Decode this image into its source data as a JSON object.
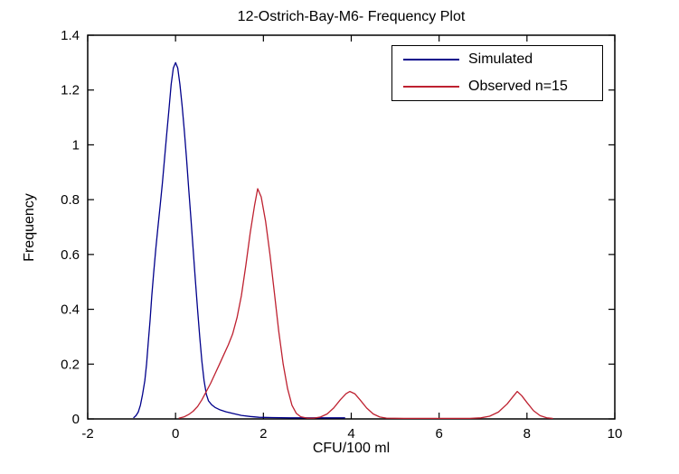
{
  "figure": {
    "background": "#ffffff",
    "axis_color": "#000000"
  },
  "chart_data": {
    "type": "line",
    "title": "12-Ostrich-Bay-M6- Frequency Plot",
    "xlabel": "CFU/100 ml",
    "ylabel": "Frequency",
    "xlim": [
      -2,
      10
    ],
    "ylim": [
      0,
      1.4
    ],
    "x_ticks": [
      -2,
      0,
      2,
      4,
      6,
      8,
      10
    ],
    "x_tick_labels": [
      "-2",
      "0",
      "2",
      "4",
      "6",
      "8",
      "10"
    ],
    "y_ticks": [
      0,
      0.2,
      0.4,
      0.6,
      0.8,
      1,
      1.2,
      1.4
    ],
    "y_tick_labels": [
      "0",
      "0.2",
      "0.4",
      "0.6",
      "0.8",
      "1",
      "1.2",
      "1.4"
    ],
    "grid": false,
    "box": true,
    "tick_direction": "in",
    "legend": {
      "position": "top-right",
      "entries": [
        {
          "label": "Simulated",
          "color": "#00008B"
        },
        {
          "label": "Observed n=15",
          "color": "#BE2130"
        }
      ]
    },
    "key_points": {
      "simulated_peak": {
        "x": 0.0,
        "y": 1.3
      },
      "observed_main_peak": {
        "x": 1.9,
        "y": 0.84
      },
      "observed_minor_peaks": [
        {
          "x": 4.0,
          "y": 0.1
        },
        {
          "x": 7.8,
          "y": 0.1
        }
      ]
    },
    "series": [
      {
        "id": "simulated",
        "name": "Simulated",
        "color": "#00008B",
        "points": [
          [
            -0.95,
            0.005
          ],
          [
            -0.9,
            0.012
          ],
          [
            -0.85,
            0.025
          ],
          [
            -0.8,
            0.05
          ],
          [
            -0.75,
            0.09
          ],
          [
            -0.7,
            0.14
          ],
          [
            -0.66,
            0.2
          ],
          [
            -0.62,
            0.28
          ],
          [
            -0.58,
            0.36
          ],
          [
            -0.54,
            0.45
          ],
          [
            -0.5,
            0.53
          ],
          [
            -0.45,
            0.62
          ],
          [
            -0.4,
            0.7
          ],
          [
            -0.35,
            0.78
          ],
          [
            -0.3,
            0.86
          ],
          [
            -0.25,
            0.95
          ],
          [
            -0.2,
            1.04
          ],
          [
            -0.15,
            1.13
          ],
          [
            -0.1,
            1.22
          ],
          [
            -0.05,
            1.28
          ],
          [
            0,
            1.3
          ],
          [
            0.05,
            1.28
          ],
          [
            0.1,
            1.22
          ],
          [
            0.15,
            1.14
          ],
          [
            0.2,
            1.05
          ],
          [
            0.25,
            0.95
          ],
          [
            0.3,
            0.84
          ],
          [
            0.35,
            0.73
          ],
          [
            0.4,
            0.62
          ],
          [
            0.45,
            0.51
          ],
          [
            0.5,
            0.4
          ],
          [
            0.55,
            0.3
          ],
          [
            0.6,
            0.21
          ],
          [
            0.65,
            0.14
          ],
          [
            0.7,
            0.09
          ],
          [
            0.75,
            0.066
          ],
          [
            0.82,
            0.052
          ],
          [
            0.9,
            0.042
          ],
          [
            1,
            0.034
          ],
          [
            1.15,
            0.026
          ],
          [
            1.3,
            0.02
          ],
          [
            1.5,
            0.013
          ],
          [
            1.7,
            0.009
          ],
          [
            1.9,
            0.006
          ],
          [
            2.2,
            0.005
          ],
          [
            2.6,
            0.004
          ],
          [
            3,
            0.004
          ],
          [
            3.4,
            0.004
          ],
          [
            3.85,
            0.004
          ]
        ]
      },
      {
        "id": "observed",
        "name": "Observed n=15",
        "color": "#BE2130",
        "points": [
          [
            0.08,
            0.003
          ],
          [
            0.2,
            0.008
          ],
          [
            0.3,
            0.016
          ],
          [
            0.4,
            0.028
          ],
          [
            0.5,
            0.045
          ],
          [
            0.6,
            0.07
          ],
          [
            0.7,
            0.1
          ],
          [
            0.8,
            0.13
          ],
          [
            0.9,
            0.165
          ],
          [
            1,
            0.2
          ],
          [
            1.1,
            0.235
          ],
          [
            1.2,
            0.27
          ],
          [
            1.3,
            0.31
          ],
          [
            1.4,
            0.37
          ],
          [
            1.5,
            0.45
          ],
          [
            1.6,
            0.56
          ],
          [
            1.7,
            0.68
          ],
          [
            1.8,
            0.78
          ],
          [
            1.87,
            0.84
          ],
          [
            1.95,
            0.81
          ],
          [
            2.05,
            0.72
          ],
          [
            2.15,
            0.6
          ],
          [
            2.25,
            0.46
          ],
          [
            2.35,
            0.32
          ],
          [
            2.45,
            0.2
          ],
          [
            2.55,
            0.11
          ],
          [
            2.65,
            0.05
          ],
          [
            2.75,
            0.02
          ],
          [
            2.85,
            0.008
          ],
          [
            3,
            0.003
          ],
          [
            3.15,
            0.003
          ],
          [
            3.3,
            0.007
          ],
          [
            3.45,
            0.018
          ],
          [
            3.6,
            0.04
          ],
          [
            3.75,
            0.07
          ],
          [
            3.88,
            0.092
          ],
          [
            3.97,
            0.1
          ],
          [
            4.08,
            0.092
          ],
          [
            4.2,
            0.07
          ],
          [
            4.35,
            0.04
          ],
          [
            4.5,
            0.018
          ],
          [
            4.65,
            0.007
          ],
          [
            4.8,
            0.003
          ],
          [
            5.2,
            0.002
          ],
          [
            5.7,
            0.002
          ],
          [
            6.2,
            0.002
          ],
          [
            6.7,
            0.002
          ],
          [
            6.95,
            0.004
          ],
          [
            7.15,
            0.01
          ],
          [
            7.35,
            0.025
          ],
          [
            7.55,
            0.055
          ],
          [
            7.7,
            0.085
          ],
          [
            7.78,
            0.1
          ],
          [
            7.88,
            0.085
          ],
          [
            8,
            0.06
          ],
          [
            8.15,
            0.03
          ],
          [
            8.3,
            0.012
          ],
          [
            8.45,
            0.004
          ],
          [
            8.58,
            0.002
          ]
        ]
      }
    ]
  }
}
